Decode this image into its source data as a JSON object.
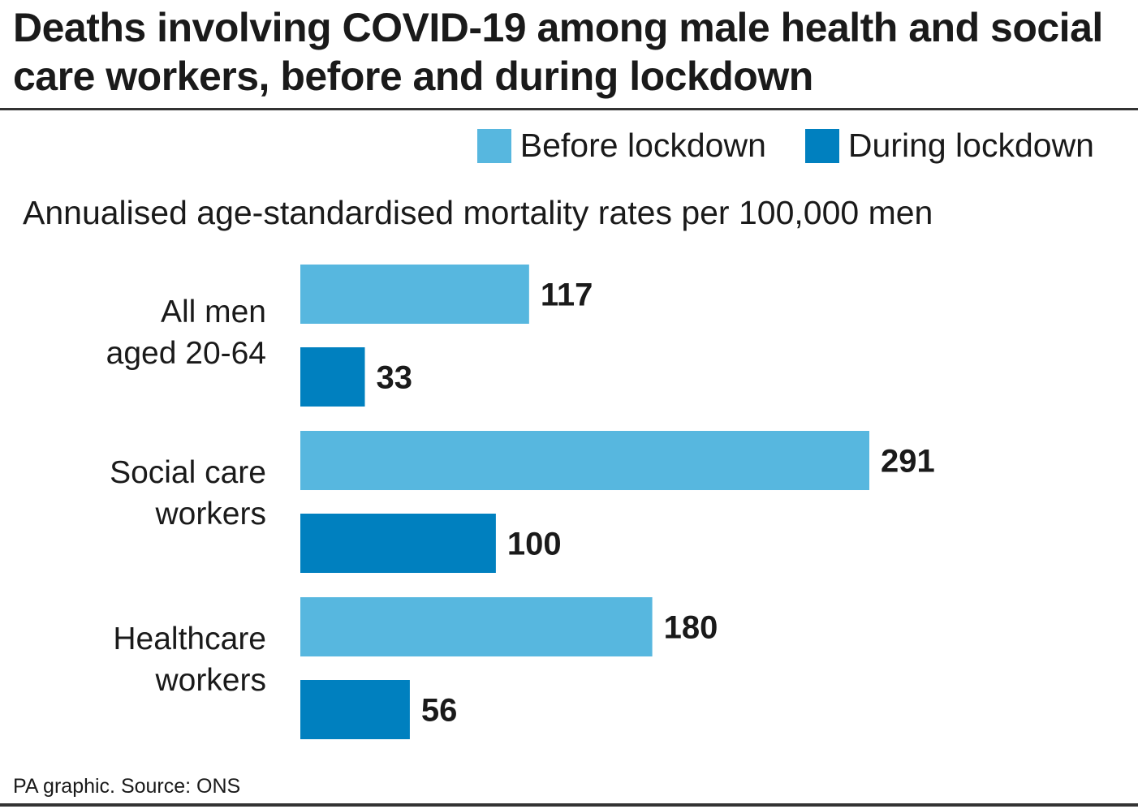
{
  "title": "Deaths involving COVID-19 among male health and social care workers, before and during lockdown",
  "legend": {
    "before": "Before lockdown",
    "during": "During lockdown"
  },
  "colors": {
    "before": "#57b7df",
    "during": "#0080bf",
    "text": "#1a1a1a",
    "rule": "#333333"
  },
  "source": "PA graphic. Source: ONS",
  "chart_data": {
    "type": "bar",
    "orientation": "horizontal",
    "title": "Deaths involving COVID-19 among male health and social care workers, before and during lockdown",
    "subtitle": "Annualised age-standardised mortality rates per 100,000 men",
    "categories": [
      {
        "line1": "All men",
        "line2": "aged 20-64"
      },
      {
        "line1": "Social care",
        "line2": "workers"
      },
      {
        "line1": "Healthcare",
        "line2": "workers"
      }
    ],
    "series": [
      {
        "name": "Before lockdown",
        "values": [
          117,
          291,
          180
        ]
      },
      {
        "name": "During lockdown",
        "values": [
          33,
          100,
          56
        ]
      }
    ],
    "xlim": [
      0,
      300
    ],
    "grid": false,
    "legend_position": "top-right"
  }
}
